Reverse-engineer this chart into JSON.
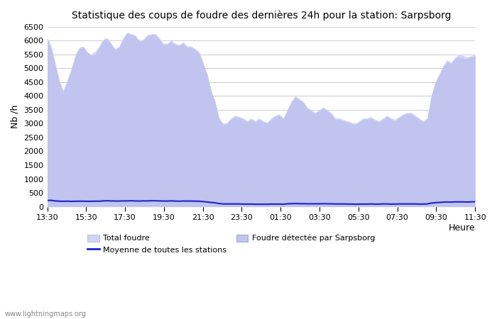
{
  "title": "Statistique des coups de foudre des dernières 24h pour la station: Sarpsborg",
  "xlabel": "Heure",
  "ylabel": "Nb /h",
  "ylim": [
    0,
    6500
  ],
  "yticks": [
    0,
    500,
    1000,
    1500,
    2000,
    2500,
    3000,
    3500,
    4000,
    4500,
    5000,
    5500,
    6000,
    6500
  ],
  "xtick_labels": [
    "13:30",
    "15:30",
    "17:30",
    "19:30",
    "21:30",
    "23:30",
    "01:30",
    "03:30",
    "05:30",
    "07:30",
    "09:30",
    "11:30"
  ],
  "watermark": "www.lightningmaps.org",
  "legend_entries": [
    "Total foudre",
    "Moyenne de toutes les stations",
    "Foudre étectée par Sarpsborg"
  ],
  "fill_color_total": "#d0d4f5",
  "fill_color_sarpsborg": "#c0c4ee",
  "line_color_moyenne": "#2222cc",
  "background_color": "#ffffff",
  "grid_color": "#cccccc",
  "total_foudre": [
    6100,
    5800,
    5200,
    4600,
    4200,
    4600,
    5000,
    5500,
    5750,
    5800,
    5600,
    5500,
    5600,
    5800,
    6050,
    6100,
    5900,
    5700,
    5800,
    6100,
    6300,
    6250,
    6200,
    6000,
    6050,
    6200,
    6250,
    6250,
    6100,
    5900,
    5900,
    6000,
    5900,
    5850,
    5950,
    5800,
    5800,
    5700,
    5600,
    5200,
    4800,
    4200,
    3800,
    3200,
    3000,
    3050,
    3200,
    3300,
    3250,
    3200,
    3100,
    3200,
    3100,
    3200,
    3100,
    3050,
    3200,
    3300,
    3350,
    3200,
    3500,
    3800,
    4000,
    3900,
    3800,
    3600,
    3500,
    3400,
    3500,
    3600,
    3500,
    3400,
    3200,
    3200,
    3150,
    3100,
    3050,
    3000,
    3100,
    3200,
    3200,
    3250,
    3150,
    3100,
    3200,
    3300,
    3200,
    3150,
    3250,
    3350,
    3400,
    3400,
    3300,
    3200,
    3100,
    3200,
    4000,
    4500,
    4800,
    5100,
    5300,
    5200,
    5400,
    5500,
    5450,
    5400,
    5450,
    5500
  ],
  "sarpsborg": [
    6050,
    5700,
    5100,
    4500,
    4100,
    4500,
    4900,
    5400,
    5700,
    5750,
    5550,
    5450,
    5500,
    5750,
    6000,
    6050,
    5850,
    5650,
    5750,
    6050,
    6250,
    6200,
    6150,
    5950,
    6000,
    6150,
    6200,
    6200,
    6050,
    5850,
    5850,
    5950,
    5850,
    5800,
    5900,
    5750,
    5750,
    5650,
    5550,
    5150,
    4750,
    4150,
    3750,
    3150,
    2950,
    3000,
    3150,
    3250,
    3200,
    3150,
    3050,
    3150,
    3050,
    3150,
    3050,
    3000,
    3150,
    3250,
    3300,
    3150,
    3450,
    3750,
    3950,
    3850,
    3750,
    3550,
    3450,
    3350,
    3450,
    3550,
    3450,
    3350,
    3150,
    3150,
    3100,
    3050,
    3000,
    2950,
    3050,
    3150,
    3150,
    3200,
    3100,
    3050,
    3150,
    3250,
    3150,
    3100,
    3200,
    3300,
    3350,
    3350,
    3250,
    3150,
    3050,
    3150,
    3950,
    4450,
    4750,
    5050,
    5250,
    5150,
    5350,
    5400,
    5350,
    5350,
    5400,
    5450
  ],
  "moyenne": [
    230,
    230,
    210,
    200,
    195,
    200,
    195,
    195,
    200,
    200,
    195,
    195,
    200,
    200,
    210,
    215,
    210,
    205,
    205,
    210,
    210,
    215,
    210,
    205,
    210,
    210,
    215,
    215,
    210,
    205,
    205,
    210,
    205,
    200,
    205,
    205,
    205,
    200,
    200,
    185,
    170,
    155,
    140,
    115,
    100,
    100,
    100,
    100,
    100,
    95,
    95,
    95,
    90,
    90,
    90,
    90,
    95,
    95,
    95,
    90,
    105,
    110,
    115,
    110,
    110,
    105,
    105,
    105,
    105,
    110,
    105,
    105,
    100,
    100,
    100,
    95,
    95,
    90,
    95,
    95,
    95,
    100,
    95,
    95,
    100,
    100,
    95,
    95,
    100,
    100,
    100,
    100,
    100,
    95,
    95,
    100,
    130,
    145,
    155,
    165,
    170,
    165,
    175,
    175,
    175,
    170,
    175,
    180
  ]
}
